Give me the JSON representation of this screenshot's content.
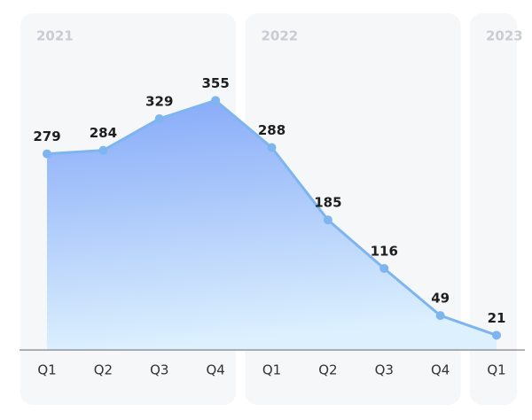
{
  "chart_data": {
    "type": "area",
    "color": "#7eb5ef",
    "groups": [
      {
        "name": "2021",
        "categories": [
          "Q1",
          "Q2",
          "Q3",
          "Q4"
        ],
        "values": [
          279,
          284,
          329,
          355
        ]
      },
      {
        "name": "2022",
        "categories": [
          "Q1",
          "Q2",
          "Q3",
          "Q4"
        ],
        "values": [
          288,
          185,
          116,
          49
        ]
      },
      {
        "name": "2023",
        "categories": [
          "Q1"
        ],
        "values": [
          21
        ]
      }
    ]
  }
}
